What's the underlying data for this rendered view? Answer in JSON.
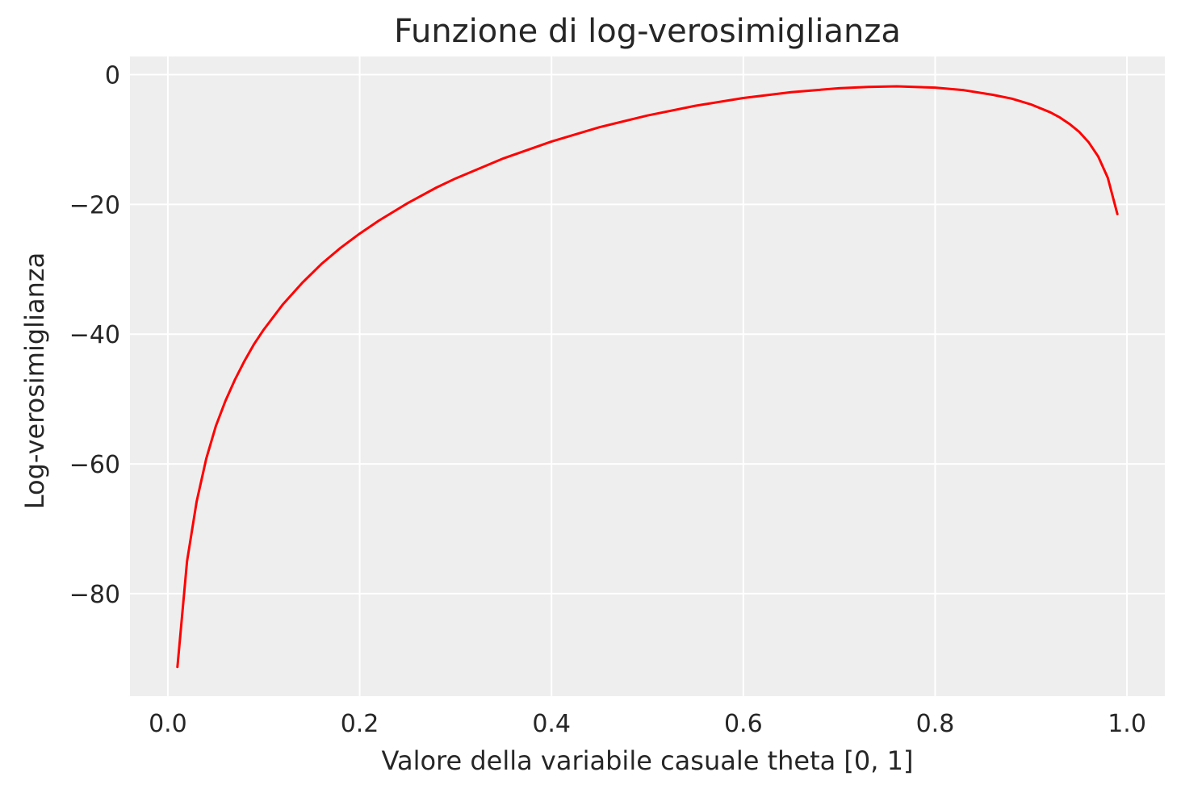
{
  "chart_data": {
    "type": "line",
    "title": "Funzione di log-verosimiglianza",
    "xlabel": "Valore della variabile casuale theta [0, 1]",
    "ylabel": "Log-verosimiglianza",
    "xlim": [
      -0.0395,
      1.0395
    ],
    "ylim": [
      -95.8,
      2.8
    ],
    "xticks": [
      0.0,
      0.2,
      0.4,
      0.6,
      0.8,
      1.0
    ],
    "xtick_labels": [
      "0.0",
      "0.2",
      "0.4",
      "0.6",
      "0.8",
      "1.0"
    ],
    "yticks": [
      0,
      -20,
      -40,
      -60,
      -80
    ],
    "ytick_labels": [
      "0",
      "−20",
      "−40",
      "−60",
      "−80"
    ],
    "grid": true,
    "background": "#eeeeee",
    "gridcolor": "#ffffff",
    "series": [
      {
        "color": "#ff0000",
        "x": [
          0.01,
          0.02,
          0.03,
          0.04,
          0.05,
          0.06,
          0.07,
          0.08,
          0.09,
          0.1,
          0.12,
          0.14,
          0.16,
          0.18,
          0.2,
          0.22,
          0.25,
          0.28,
          0.3,
          0.35,
          0.4,
          0.45,
          0.5,
          0.55,
          0.6,
          0.65,
          0.7,
          0.73,
          0.76,
          0.8,
          0.83,
          0.86,
          0.88,
          0.9,
          0.92,
          0.93,
          0.94,
          0.95,
          0.96,
          0.97,
          0.98,
          0.99
        ],
        "y": [
          -91.3,
          -75.0,
          -65.8,
          -59.2,
          -54.2,
          -50.3,
          -47.0,
          -44.1,
          -41.5,
          -39.3,
          -35.4,
          -32.1,
          -29.2,
          -26.7,
          -24.5,
          -22.5,
          -19.8,
          -17.4,
          -16.0,
          -12.9,
          -10.3,
          -8.1,
          -6.3,
          -4.8,
          -3.6,
          -2.7,
          -2.1,
          -1.9,
          -1.8,
          -2.0,
          -2.4,
          -3.1,
          -3.7,
          -4.6,
          -5.8,
          -6.6,
          -7.6,
          -8.8,
          -10.4,
          -12.6,
          -15.9,
          -21.5
        ]
      }
    ]
  }
}
